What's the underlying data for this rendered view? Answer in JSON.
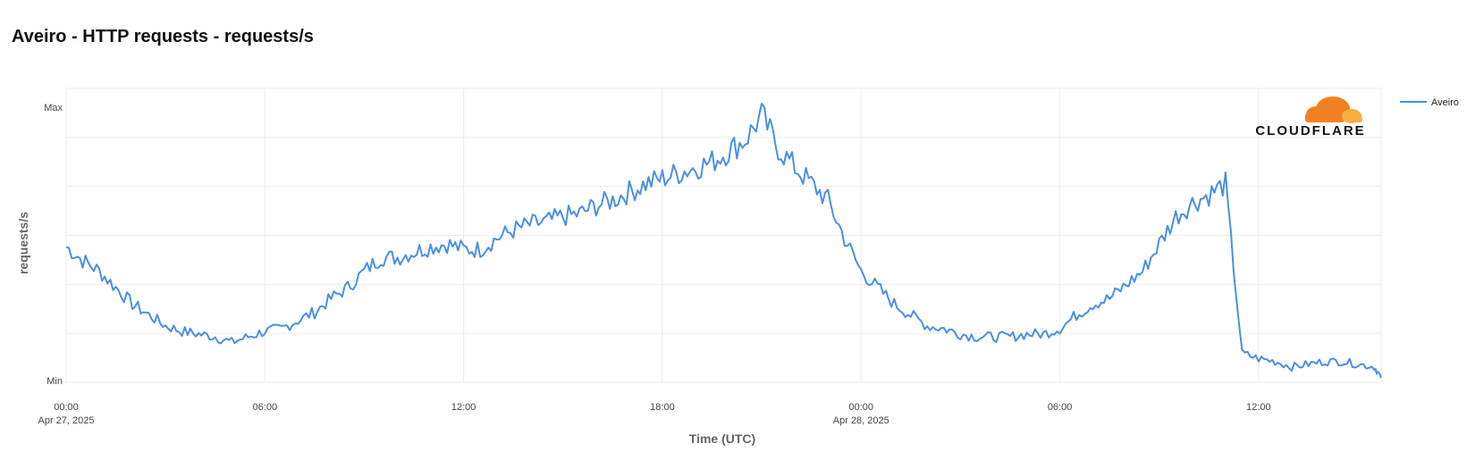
{
  "title": "Aveiro - HTTP requests - requests/s",
  "logo_text": "CLOUDFLARE",
  "colors": {
    "series": "#4a90e2",
    "grid": "#ececec",
    "logo_orange": "#f38020",
    "logo_light": "#faae40"
  },
  "chart_data": {
    "type": "line",
    "title": "Aveiro - HTTP requests - requests/s",
    "xlabel": "Time (UTC)",
    "ylabel": "requests/s",
    "y_ticks": [
      "Min",
      "Max"
    ],
    "x_ticks": [
      {
        "hour": 0,
        "label": "00:00",
        "sublabel": "Apr 27, 2025"
      },
      {
        "hour": 6,
        "label": "06:00",
        "sublabel": ""
      },
      {
        "hour": 12,
        "label": "12:00",
        "sublabel": ""
      },
      {
        "hour": 18,
        "label": "18:00",
        "sublabel": ""
      },
      {
        "hour": 24,
        "label": "00:00",
        "sublabel": "Apr 28, 2025"
      },
      {
        "hour": 30,
        "label": "06:00",
        "sublabel": ""
      },
      {
        "hour": 36,
        "label": "12:00",
        "sublabel": ""
      }
    ],
    "xlim_hours": [
      0,
      39.7
    ],
    "ylim_normalized": [
      0,
      1
    ],
    "legend": {
      "position": "top-right",
      "entries": [
        "Aveiro"
      ]
    },
    "grid": true,
    "series": [
      {
        "name": "Aveiro",
        "x_hours": [
          0,
          0.5,
          1,
          1.5,
          2,
          2.5,
          3,
          3.5,
          4,
          4.5,
          5,
          5.5,
          6,
          6.5,
          7,
          7.5,
          8,
          8.5,
          9,
          9.5,
          10,
          10.5,
          11,
          11.5,
          12,
          12.5,
          13,
          13.5,
          14,
          14.5,
          15,
          15.5,
          16,
          16.5,
          17,
          17.5,
          18,
          18.5,
          19,
          19.5,
          20,
          20.5,
          21,
          21.5,
          22,
          22.5,
          23,
          23.5,
          24,
          24.5,
          25,
          25.5,
          26,
          26.5,
          27,
          27.5,
          28,
          28.5,
          29,
          29.5,
          30,
          30.5,
          31,
          31.5,
          32,
          32.5,
          33,
          33.5,
          34,
          34.5,
          35,
          35.5,
          36,
          36.5,
          37,
          37.5,
          38,
          38.5,
          39,
          39.5,
          39.7
        ],
        "values": [
          0.49,
          0.44,
          0.4,
          0.34,
          0.28,
          0.24,
          0.2,
          0.18,
          0.17,
          0.16,
          0.14,
          0.16,
          0.18,
          0.19,
          0.22,
          0.25,
          0.3,
          0.34,
          0.4,
          0.45,
          0.45,
          0.47,
          0.49,
          0.5,
          0.48,
          0.48,
          0.52,
          0.55,
          0.57,
          0.58,
          0.6,
          0.61,
          0.64,
          0.66,
          0.69,
          0.72,
          0.74,
          0.76,
          0.78,
          0.8,
          0.84,
          0.88,
          0.97,
          0.85,
          0.78,
          0.72,
          0.66,
          0.52,
          0.4,
          0.34,
          0.28,
          0.24,
          0.2,
          0.19,
          0.17,
          0.16,
          0.16,
          0.16,
          0.17,
          0.17,
          0.19,
          0.24,
          0.28,
          0.3,
          0.35,
          0.4,
          0.5,
          0.6,
          0.65,
          0.68,
          0.72,
          0.1,
          0.08,
          0.07,
          0.05,
          0.06,
          0.07,
          0.07,
          0.06,
          0.05,
          0.01
        ]
      }
    ]
  }
}
